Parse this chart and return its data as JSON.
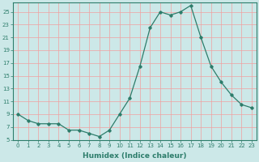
{
  "x": [
    0,
    1,
    2,
    3,
    4,
    5,
    6,
    7,
    8,
    9,
    10,
    11,
    12,
    13,
    14,
    15,
    16,
    17,
    18,
    19,
    20,
    21,
    22,
    23
  ],
  "y": [
    9,
    8,
    7.5,
    7.5,
    7.5,
    6.5,
    6.5,
    6,
    5.5,
    6.5,
    9,
    11.5,
    16.5,
    22.5,
    25,
    24.5,
    25,
    26,
    21,
    16.5,
    14,
    12,
    10.5,
    10
  ],
  "xlabel": "Humidex (Indice chaleur)",
  "ylim": [
    5,
    26
  ],
  "xlim": [
    -0.5,
    23.5
  ],
  "yticks": [
    5,
    7,
    9,
    11,
    13,
    15,
    17,
    19,
    21,
    23,
    25
  ],
  "xticks": [
    0,
    1,
    2,
    3,
    4,
    5,
    6,
    7,
    8,
    9,
    10,
    11,
    12,
    13,
    14,
    15,
    16,
    17,
    18,
    19,
    20,
    21,
    22,
    23
  ],
  "line_color": "#2d7d6b",
  "marker_color": "#2d7d6b",
  "bg_color": "#cce8e8",
  "grid_major_color": "#f0a0a0",
  "grid_minor_color": "#e8c8c8",
  "axis_color": "#2d7d6b",
  "tick_fontsize": 5.0,
  "xlabel_fontsize": 6.5
}
